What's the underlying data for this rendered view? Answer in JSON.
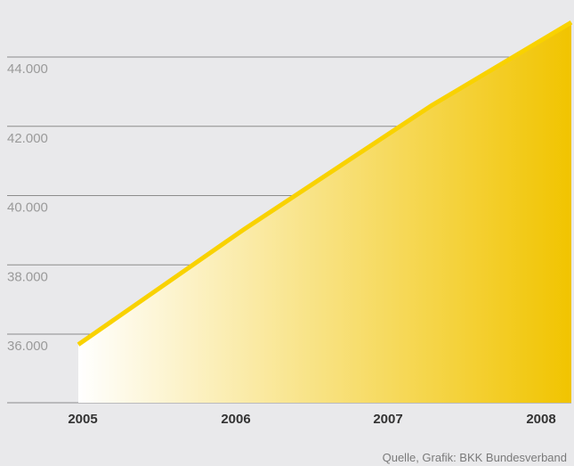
{
  "chart_data": {
    "type": "area",
    "title": "",
    "xlabel": "",
    "ylabel": "",
    "x": [
      "2005",
      "2006",
      "2007",
      "2008"
    ],
    "series": [
      {
        "values": [
          35700,
          39000,
          42600,
          45000
        ]
      }
    ],
    "point_x": [
      2005.0,
      2006.0,
      2007.15,
      2008.0
    ],
    "x_range": [
      2005.0,
      2008.0
    ],
    "ylim": [
      34000,
      45000
    ],
    "yticks": [
      36000,
      38000,
      40000,
      42000,
      44000
    ],
    "ytick_labels": [
      "36.000",
      "38.000",
      "40.000",
      "42.000",
      "44.000"
    ],
    "xtick_labels": [
      "2005",
      "2006",
      "2007",
      "2008"
    ],
    "grid": true,
    "legend": "none",
    "colors": {
      "background": "#e9e9eb",
      "line": "#f9d200",
      "fill_start": "#ffffff",
      "fill_end": "#f1c400",
      "grid": "#8c8c8c",
      "ytick_text": "#9a9a9a",
      "xtick_text": "#333333"
    }
  },
  "source": "Quelle, Grafik: BKK Bundesverband"
}
